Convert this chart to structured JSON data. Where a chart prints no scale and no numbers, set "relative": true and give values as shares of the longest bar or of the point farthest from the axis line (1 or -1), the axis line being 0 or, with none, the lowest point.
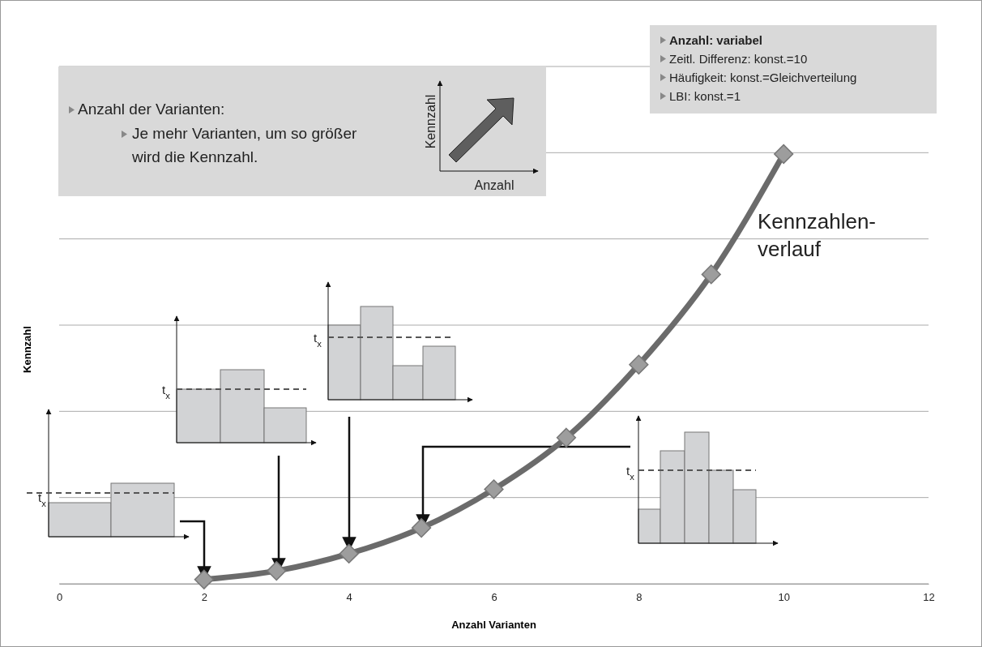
{
  "chart_data": {
    "type": "line",
    "relative": true,
    "x": [
      2,
      3,
      4,
      5,
      6,
      7,
      8,
      9,
      10
    ],
    "series": [
      {
        "name": "Kennzahlen-verlauf",
        "color": "#6b6b6b",
        "values": [
          0.01,
          0.03,
          0.07,
          0.13,
          0.22,
          0.34,
          0.51,
          0.72,
          1
        ]
      }
    ],
    "marker": "diamond",
    "grid": "y",
    "xlim": [
      0,
      12
    ],
    "xticks": [
      0,
      2,
      4,
      6,
      8,
      10,
      12
    ],
    "xlabel": "Anzahl Varianten",
    "ylabel": "Kennzahl",
    "annotations": [
      "Anzahl der Varianten:",
      "Je mehr Varianten, um so größer wird die Kennzahl.",
      "Kennzahl",
      "Anzahl",
      "Anzahl: variabel",
      "Zeitl. Differenz: konst.=10",
      "Häufigkeit: konst.=Gleichverteilung",
      "LBI: konst.=1",
      "t$_{x}$",
      "t$_{x}$",
      "t$_{x}$",
      "t$_{x}$"
    ]
  }
}
